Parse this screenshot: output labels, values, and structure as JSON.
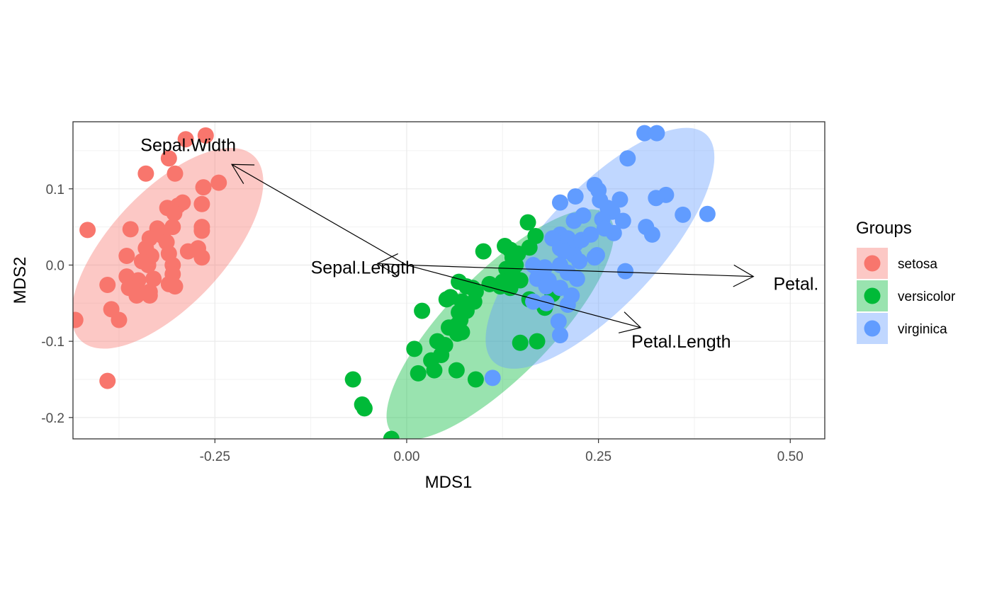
{
  "chart_data": {
    "type": "scatter",
    "title": "",
    "xlabel": "MDS1",
    "ylabel": "MDS2",
    "xlim": [
      -0.435,
      0.545
    ],
    "ylim": [
      -0.228,
      0.188
    ],
    "x_ticks": [
      {
        "value": -0.25,
        "label": "-0.25"
      },
      {
        "value": 0.0,
        "label": "0.00"
      },
      {
        "value": 0.25,
        "label": "0.25"
      },
      {
        "value": 0.5,
        "label": "0.50"
      }
    ],
    "y_ticks": [
      {
        "value": -0.2,
        "label": "-0.2"
      },
      {
        "value": -0.1,
        "label": "-0.1"
      },
      {
        "value": 0.0,
        "label": "0.0"
      },
      {
        "value": 0.1,
        "label": "0.1"
      }
    ],
    "grid": true,
    "legend": {
      "title": "Groups",
      "position": "right"
    },
    "series": [
      {
        "name": "setosa",
        "color": "#F8766D",
        "ellipse": {
          "cx": -0.312,
          "cy": 0.022,
          "rx": 0.165,
          "ry": 0.075,
          "angle": 47
        },
        "points": [
          [
            -0.34,
            0.12
          ],
          [
            -0.288,
            0.165
          ],
          [
            -0.262,
            0.17
          ],
          [
            -0.31,
            0.14
          ],
          [
            -0.302,
            0.12
          ],
          [
            -0.245,
            0.108
          ],
          [
            -0.265,
            0.102
          ],
          [
            -0.312,
            0.075
          ],
          [
            -0.298,
            0.078
          ],
          [
            -0.292,
            0.082
          ],
          [
            -0.303,
            0.068
          ],
          [
            -0.305,
            0.05
          ],
          [
            -0.267,
            0.08
          ],
          [
            -0.267,
            0.05
          ],
          [
            -0.267,
            0.045
          ],
          [
            -0.325,
            0.048
          ],
          [
            -0.36,
            0.047
          ],
          [
            -0.416,
            0.046
          ],
          [
            -0.318,
            0.038
          ],
          [
            -0.335,
            0.035
          ],
          [
            -0.313,
            0.03
          ],
          [
            -0.34,
            0.022
          ],
          [
            -0.31,
            0.015
          ],
          [
            -0.285,
            0.018
          ],
          [
            -0.272,
            0.022
          ],
          [
            -0.267,
            0.01
          ],
          [
            -0.333,
            0.012
          ],
          [
            -0.365,
            0.012
          ],
          [
            -0.345,
            0.005
          ],
          [
            -0.337,
            0.0
          ],
          [
            -0.305,
            0.0
          ],
          [
            -0.365,
            -0.015
          ],
          [
            -0.35,
            -0.02
          ],
          [
            -0.33,
            -0.018
          ],
          [
            -0.305,
            -0.012
          ],
          [
            -0.31,
            -0.025
          ],
          [
            -0.302,
            -0.028
          ],
          [
            -0.362,
            -0.03
          ],
          [
            -0.39,
            -0.026
          ],
          [
            -0.348,
            -0.035
          ],
          [
            -0.335,
            -0.035
          ],
          [
            -0.352,
            -0.04
          ],
          [
            -0.335,
            -0.04
          ],
          [
            -0.385,
            -0.058
          ],
          [
            -0.375,
            -0.072
          ],
          [
            -0.432,
            -0.072
          ],
          [
            -0.39,
            -0.152
          ]
        ]
      },
      {
        "name": "versicolor",
        "color": "#00BA38",
        "ellipse": {
          "cx": 0.122,
          "cy": -0.078,
          "rx": 0.2,
          "ry": 0.068,
          "angle": 45.5
        },
        "points": [
          [
            0.158,
            0.056
          ],
          [
            0.168,
            0.038
          ],
          [
            0.128,
            0.025
          ],
          [
            0.135,
            0.02
          ],
          [
            0.138,
            0.01
          ],
          [
            0.1,
            0.018
          ],
          [
            0.16,
            0.023
          ],
          [
            0.145,
            0.015
          ],
          [
            0.142,
            0.0
          ],
          [
            0.13,
            -0.005
          ],
          [
            0.138,
            -0.012
          ],
          [
            0.125,
            -0.022
          ],
          [
            0.108,
            -0.025
          ],
          [
            0.122,
            -0.028
          ],
          [
            0.135,
            -0.03
          ],
          [
            0.086,
            -0.03
          ],
          [
            0.068,
            -0.022
          ],
          [
            0.09,
            -0.035
          ],
          [
            0.078,
            -0.028
          ],
          [
            0.052,
            -0.045
          ],
          [
            0.072,
            -0.048
          ],
          [
            0.075,
            -0.055
          ],
          [
            0.068,
            -0.062
          ],
          [
            0.078,
            -0.06
          ],
          [
            0.057,
            -0.042
          ],
          [
            0.088,
            -0.048
          ],
          [
            0.072,
            -0.058
          ],
          [
            0.07,
            -0.072
          ],
          [
            0.064,
            -0.08
          ],
          [
            0.066,
            -0.09
          ],
          [
            0.055,
            -0.082
          ],
          [
            0.072,
            -0.088
          ],
          [
            0.068,
            -0.082
          ],
          [
            0.02,
            -0.06
          ],
          [
            0.04,
            -0.1
          ],
          [
            0.01,
            -0.11
          ],
          [
            0.05,
            -0.105
          ],
          [
            0.045,
            -0.118
          ],
          [
            0.032,
            -0.125
          ],
          [
            0.036,
            -0.138
          ],
          [
            0.015,
            -0.142
          ],
          [
            0.065,
            -0.138
          ],
          [
            0.09,
            -0.15
          ],
          [
            -0.07,
            -0.15
          ],
          [
            -0.058,
            -0.183
          ],
          [
            -0.055,
            -0.188
          ],
          [
            -0.02,
            -0.228
          ],
          [
            0.148,
            -0.102
          ],
          [
            0.17,
            -0.1
          ],
          [
            0.19,
            -0.038
          ],
          [
            0.18,
            -0.056
          ],
          [
            0.148,
            -0.02
          ],
          [
            0.16,
            -0.045
          ]
        ]
      },
      {
        "name": "virginica",
        "color": "#619CFF",
        "ellipse": {
          "cx": 0.252,
          "cy": 0.022,
          "rx": 0.203,
          "ry": 0.076,
          "angle": 47
        },
        "points": [
          [
            0.31,
            0.173
          ],
          [
            0.326,
            0.173
          ],
          [
            0.288,
            0.14
          ],
          [
            0.245,
            0.105
          ],
          [
            0.25,
            0.098
          ],
          [
            0.278,
            0.086
          ],
          [
            0.252,
            0.085
          ],
          [
            0.338,
            0.092
          ],
          [
            0.325,
            0.088
          ],
          [
            0.268,
            0.07
          ],
          [
            0.262,
            0.075
          ],
          [
            0.22,
            0.09
          ],
          [
            0.2,
            0.082
          ],
          [
            0.23,
            0.065
          ],
          [
            0.218,
            0.058
          ],
          [
            0.255,
            0.06
          ],
          [
            0.36,
            0.066
          ],
          [
            0.392,
            0.067
          ],
          [
            0.282,
            0.058
          ],
          [
            0.312,
            0.05
          ],
          [
            0.32,
            0.04
          ],
          [
            0.27,
            0.042
          ],
          [
            0.258,
            0.048
          ],
          [
            0.2,
            0.04
          ],
          [
            0.21,
            0.035
          ],
          [
            0.22,
            0.028
          ],
          [
            0.228,
            0.033
          ],
          [
            0.24,
            0.04
          ],
          [
            0.19,
            0.035
          ],
          [
            0.2,
            0.022
          ],
          [
            0.205,
            0.018
          ],
          [
            0.218,
            0.013
          ],
          [
            0.225,
            0.005
          ],
          [
            0.248,
            0.013
          ],
          [
            0.245,
            0.01
          ],
          [
            0.2,
            0.0
          ],
          [
            0.18,
            -0.003
          ],
          [
            0.165,
            0.0
          ],
          [
            0.172,
            -0.01
          ],
          [
            0.21,
            -0.01
          ],
          [
            0.17,
            -0.018
          ],
          [
            0.185,
            -0.02
          ],
          [
            0.182,
            -0.028
          ],
          [
            0.2,
            -0.03
          ],
          [
            0.222,
            -0.018
          ],
          [
            0.285,
            -0.008
          ],
          [
            0.215,
            -0.04
          ],
          [
            0.21,
            -0.052
          ],
          [
            0.165,
            -0.048
          ],
          [
            0.182,
            -0.05
          ],
          [
            0.198,
            -0.074
          ],
          [
            0.2,
            -0.092
          ],
          [
            0.112,
            -0.148
          ]
        ]
      }
    ],
    "arrows": [
      {
        "name": "Sepal.Width",
        "label": "Sepal.Width",
        "from": [
          0.0,
          0.0
        ],
        "to": [
          -0.228,
          0.132
        ],
        "label_pos": [
          -0.347,
          0.158
        ],
        "anchor": "start"
      },
      {
        "name": "Sepal.Length",
        "label": "Sepal.Length",
        "from": [
          0.0,
          0.0
        ],
        "to": [
          -0.038,
          0.002
        ],
        "label_pos": [
          -0.125,
          -0.003
        ],
        "anchor": "start"
      },
      {
        "name": "Petal.Width",
        "label": "Petal.",
        "from": [
          0.0,
          0.0
        ],
        "to": [
          0.452,
          -0.015
        ],
        "label_pos": [
          0.478,
          -0.024
        ],
        "anchor": "start"
      },
      {
        "name": "Petal.Length",
        "label": "Petal.Length",
        "from": [
          0.0,
          0.0
        ],
        "to": [
          0.305,
          -0.082
        ],
        "label_pos": [
          0.293,
          -0.1
        ],
        "anchor": "start"
      }
    ]
  }
}
